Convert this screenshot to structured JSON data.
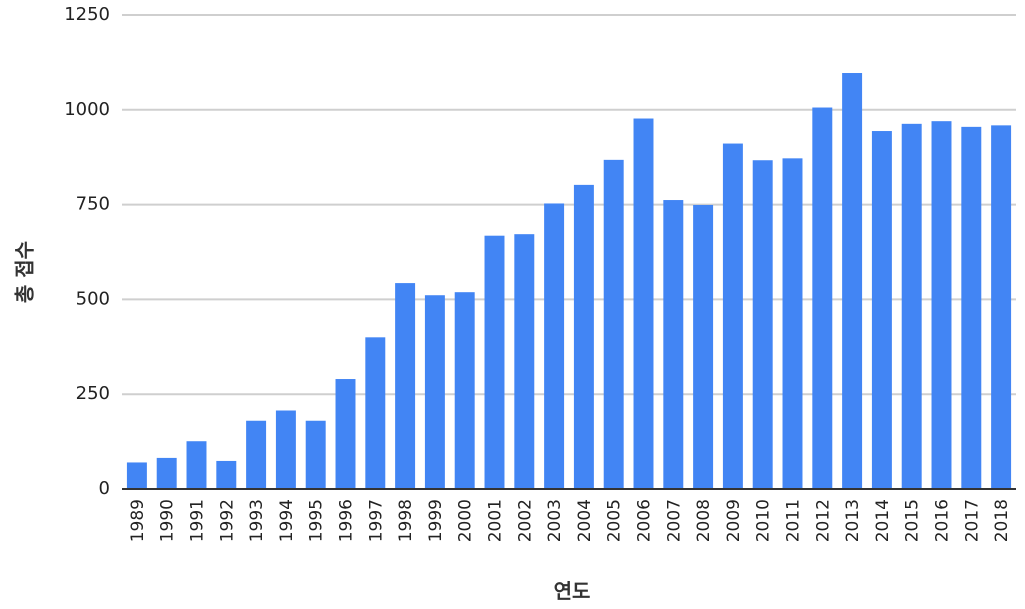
{
  "chart_data": {
    "type": "bar",
    "title": "",
    "xlabel": "연도",
    "ylabel": "총 접수",
    "ylim": [
      0,
      1250
    ],
    "yticks": [
      0,
      250,
      500,
      750,
      1000,
      1250
    ],
    "grid": true,
    "bar_color": "#4285f4",
    "categories": [
      "1989",
      "1990",
      "1991",
      "1992",
      "1993",
      "1994",
      "1995",
      "1996",
      "1997",
      "1998",
      "1999",
      "2000",
      "2001",
      "2002",
      "2003",
      "2004",
      "2005",
      "2006",
      "2007",
      "2008",
      "2009",
      "2010",
      "2011",
      "2012",
      "2013",
      "2014",
      "2015",
      "2016",
      "2017",
      "2018"
    ],
    "values": [
      70,
      82,
      126,
      74,
      180,
      207,
      180,
      290,
      400,
      543,
      511,
      519,
      668,
      672,
      753,
      802,
      868,
      977,
      762,
      749,
      911,
      867,
      872,
      1006,
      1097,
      944,
      963,
      970,
      955,
      959
    ]
  }
}
